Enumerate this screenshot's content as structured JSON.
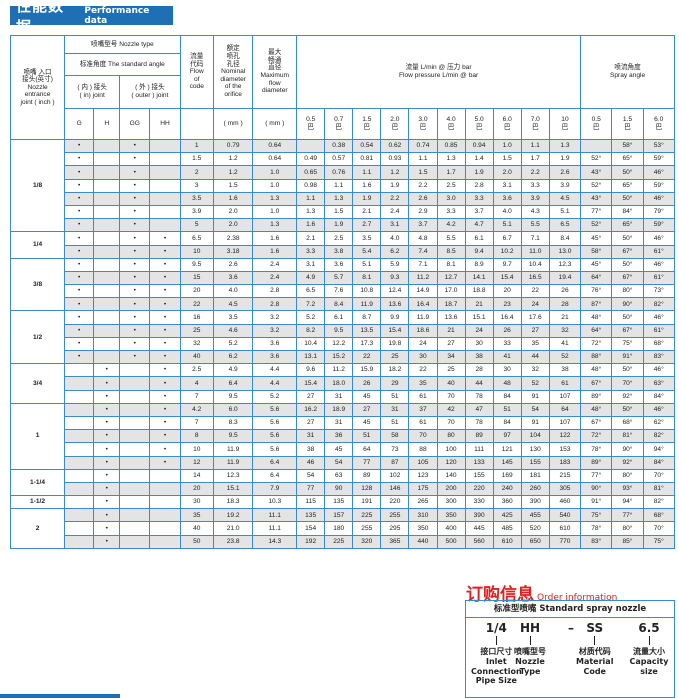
{
  "title": {
    "zh": "性能数据",
    "en": "Performance data"
  },
  "header": {
    "entrance_joint": [
      "喷嘴 入口",
      "接头(英寸)",
      "Nozzle",
      "entrance",
      "joint ( inch )"
    ],
    "nozzle_type": "喷嘴型号  Nozzle type",
    "standard_angle": "标准角度 The standard angle",
    "in_joint": [
      "( 内 ) 接头",
      "( in) joint"
    ],
    "outer_joint": [
      "( 外 ) 接头",
      "( outer ) joint"
    ],
    "joint_cols": [
      "G",
      "H",
      "GG",
      "HH"
    ],
    "flow_code": [
      "流量",
      "代码",
      "Flow",
      "of",
      "code"
    ],
    "nominal": [
      "额定",
      "喷孔",
      "孔径",
      "Nominal",
      "diameter",
      "of the",
      "orifice"
    ],
    "max_flow": [
      "最大",
      "畅通",
      "直径",
      "Maximum",
      "flow",
      "diameter"
    ],
    "mm": "( mm )",
    "flow_pressure": [
      "流量 L/min @ 压力 bar",
      "Flow pressure L/min @ bar"
    ],
    "spray_angle": [
      "喷流角度",
      "Spray angle"
    ],
    "pressures": [
      "0.5",
      "0.7",
      "1.5",
      "2.0",
      "3.0",
      "4.0",
      "5.0",
      "6.0",
      "7.0",
      "10"
    ],
    "angle_pressures": [
      "0.5",
      "1.5",
      "6.0"
    ],
    "bar_unit": "巴"
  },
  "dot_symbol": "•",
  "groups": [
    {
      "size": "1/8",
      "rows": [
        {
          "j": [
            1,
            0,
            1,
            0
          ],
          "code": "1",
          "nom": "0.79",
          "max": "0.64",
          "flow": [
            "",
            "0.38",
            "0.54",
            "0.62",
            "0.74",
            "0.85",
            "0.94",
            "1.0",
            "1.1",
            "1.3"
          ],
          "ang": [
            "",
            "58°",
            "53°"
          ]
        },
        {
          "j": [
            1,
            0,
            1,
            0
          ],
          "code": "1.5",
          "nom": "1.2",
          "max": "0.64",
          "flow": [
            "0.49",
            "0.57",
            "0.81",
            "0.93",
            "1.1",
            "1.3",
            "1.4",
            "1.5",
            "1.7",
            "1.9"
          ],
          "ang": [
            "52°",
            "65°",
            "59°"
          ]
        },
        {
          "j": [
            1,
            0,
            1,
            0
          ],
          "code": "2",
          "nom": "1.2",
          "max": "1.0",
          "flow": [
            "0.65",
            "0.76",
            "1.1",
            "1.2",
            "1.5",
            "1.7",
            "1.9",
            "2.0",
            "2.2",
            "2.6"
          ],
          "ang": [
            "43°",
            "50°",
            "46°"
          ]
        },
        {
          "j": [
            1,
            0,
            1,
            0
          ],
          "code": "3",
          "nom": "1.5",
          "max": "1.0",
          "flow": [
            "0.98",
            "1.1",
            "1.6",
            "1.9",
            "2.2",
            "2.5",
            "2.8",
            "3.1",
            "3.3",
            "3.9"
          ],
          "ang": [
            "52°",
            "65°",
            "59°"
          ]
        },
        {
          "j": [
            1,
            0,
            1,
            0
          ],
          "code": "3.5",
          "nom": "1.6",
          "max": "1.3",
          "flow": [
            "1.1",
            "1.3",
            "1.9",
            "2.2",
            "2.6",
            "3.0",
            "3.3",
            "3.6",
            "3.9",
            "4.5"
          ],
          "ang": [
            "43°",
            "50°",
            "46°"
          ]
        },
        {
          "j": [
            1,
            0,
            1,
            0
          ],
          "code": "3.9",
          "nom": "2.0",
          "max": "1.0",
          "flow": [
            "1.3",
            "1.5",
            "2.1",
            "2.4",
            "2.9",
            "3.3",
            "3.7",
            "4.0",
            "4.3",
            "5.1"
          ],
          "ang": [
            "77°",
            "84°",
            "79°"
          ]
        },
        {
          "j": [
            1,
            0,
            1,
            0
          ],
          "code": "5",
          "nom": "2.0",
          "max": "1.3",
          "flow": [
            "1.6",
            "1.9",
            "2.7",
            "3.1",
            "3.7",
            "4.2",
            "4.7",
            "5.1",
            "5.5",
            "6.5"
          ],
          "ang": [
            "52°",
            "65°",
            "59°"
          ]
        }
      ]
    },
    {
      "size": "1/4",
      "rows": [
        {
          "j": [
            1,
            0,
            1,
            1
          ],
          "code": "6.5",
          "nom": "2.38",
          "max": "1.6",
          "flow": [
            "2.1",
            "2.5",
            "3.5",
            "4.0",
            "4.8",
            "5.5",
            "6.1",
            "6.7",
            "7.1",
            "8.4"
          ],
          "ang": [
            "45°",
            "50°",
            "46°"
          ]
        },
        {
          "j": [
            1,
            0,
            1,
            1
          ],
          "code": "10",
          "nom": "3.18",
          "max": "1.6",
          "flow": [
            "3.3",
            "3.8",
            "5.4",
            "6.2",
            "7.4",
            "8.5",
            "9.4",
            "10.2",
            "11.0",
            "13.0"
          ],
          "ang": [
            "58°",
            "67°",
            "61°"
          ]
        }
      ]
    },
    {
      "size": "3/8",
      "rows": [
        {
          "j": [
            1,
            0,
            1,
            1
          ],
          "code": "9.5",
          "nom": "2.6",
          "max": "2.4",
          "flow": [
            "3.1",
            "3.6",
            "5.1",
            "5.9",
            "7.1",
            "8.1",
            "8.9",
            "9.7",
            "10.4",
            "12.3"
          ],
          "ang": [
            "45°",
            "50°",
            "46°"
          ]
        },
        {
          "j": [
            1,
            0,
            1,
            1
          ],
          "code": "15",
          "nom": "3.6",
          "max": "2.4",
          "flow": [
            "4.9",
            "5.7",
            "8.1",
            "9.3",
            "11.2",
            "12.7",
            "14.1",
            "15.4",
            "16.5",
            "19.4"
          ],
          "ang": [
            "64°",
            "67°",
            "61°"
          ]
        },
        {
          "j": [
            1,
            0,
            1,
            1
          ],
          "code": "20",
          "nom": "4.0",
          "max": "2.8",
          "flow": [
            "6.5",
            "7.6",
            "10.8",
            "12.4",
            "14.9",
            "17.0",
            "18.8",
            "20",
            "22",
            "26"
          ],
          "ang": [
            "76°",
            "80°",
            "73°"
          ]
        },
        {
          "j": [
            1,
            0,
            1,
            1
          ],
          "code": "22",
          "nom": "4.5",
          "max": "2.8",
          "flow": [
            "7.2",
            "8.4",
            "11.9",
            "13.6",
            "16.4",
            "18.7",
            "21",
            "23",
            "24",
            "28"
          ],
          "ang": [
            "87°",
            "90°",
            "82°"
          ]
        }
      ]
    },
    {
      "size": "1/2",
      "rows": [
        {
          "j": [
            1,
            0,
            1,
            1
          ],
          "code": "16",
          "nom": "3.5",
          "max": "3.2",
          "flow": [
            "5.2",
            "6.1",
            "8.7",
            "9.9",
            "11.9",
            "13.6",
            "15.1",
            "16.4",
            "17.6",
            "21"
          ],
          "ang": [
            "48°",
            "50°",
            "46°"
          ]
        },
        {
          "j": [
            1,
            0,
            1,
            1
          ],
          "code": "25",
          "nom": "4.6",
          "max": "3.2",
          "flow": [
            "8.2",
            "9.5",
            "13.5",
            "15.4",
            "18.6",
            "21",
            "24",
            "26",
            "27",
            "32"
          ],
          "ang": [
            "64°",
            "67°",
            "61°"
          ]
        },
        {
          "j": [
            1,
            0,
            1,
            1
          ],
          "code": "32",
          "nom": "5.2",
          "max": "3.6",
          "flow": [
            "10.4",
            "12.2",
            "17.3",
            "19.8",
            "24",
            "27",
            "30",
            "33",
            "35",
            "41"
          ],
          "ang": [
            "72°",
            "75°",
            "68°"
          ]
        },
        {
          "j": [
            1,
            0,
            1,
            1
          ],
          "code": "40",
          "nom": "6.2",
          "max": "3.6",
          "flow": [
            "13.1",
            "15.2",
            "22",
            "25",
            "30",
            "34",
            "38",
            "41",
            "44",
            "52"
          ],
          "ang": [
            "88°",
            "91°",
            "83°"
          ]
        }
      ]
    },
    {
      "size": "3/4",
      "rows": [
        {
          "j": [
            0,
            1,
            0,
            1
          ],
          "code": "2.5",
          "nom": "4.9",
          "max": "4.4",
          "flow": [
            "9.6",
            "11.2",
            "15.9",
            "18.2",
            "22",
            "25",
            "28",
            "30",
            "32",
            "38"
          ],
          "ang": [
            "48°",
            "50°",
            "46°"
          ]
        },
        {
          "j": [
            0,
            1,
            0,
            1
          ],
          "code": "4",
          "nom": "6.4",
          "max": "4.4",
          "flow": [
            "15.4",
            "18.0",
            "26",
            "29",
            "35",
            "40",
            "44",
            "48",
            "52",
            "61"
          ],
          "ang": [
            "67°",
            "70°",
            "63°"
          ]
        },
        {
          "j": [
            0,
            1,
            0,
            1
          ],
          "code": "7",
          "nom": "9.5",
          "max": "5.2",
          "flow": [
            "27",
            "31",
            "45",
            "51",
            "61",
            "70",
            "78",
            "84",
            "91",
            "107"
          ],
          "ang": [
            "89°",
            "92°",
            "84°"
          ]
        }
      ]
    },
    {
      "size": "1",
      "rows": [
        {
          "j": [
            0,
            1,
            0,
            1
          ],
          "code": "4.2",
          "nom": "6.0",
          "max": "5.6",
          "flow": [
            "16.2",
            "18.9",
            "27",
            "31",
            "37",
            "42",
            "47",
            "51",
            "54",
            "64"
          ],
          "ang": [
            "48°",
            "50°",
            "46°"
          ]
        },
        {
          "j": [
            0,
            1,
            0,
            1
          ],
          "code": "7",
          "nom": "8.3",
          "max": "5.6",
          "flow": [
            "27",
            "31",
            "45",
            "51",
            "61",
            "70",
            "78",
            "84",
            "91",
            "107"
          ],
          "ang": [
            "67°",
            "68°",
            "62°"
          ]
        },
        {
          "j": [
            0,
            1,
            0,
            1
          ],
          "code": "8",
          "nom": "9.5",
          "max": "5.6",
          "flow": [
            "31",
            "36",
            "51",
            "58",
            "70",
            "80",
            "89",
            "97",
            "104",
            "122"
          ],
          "ang": [
            "72°",
            "81°",
            "82°"
          ]
        },
        {
          "j": [
            0,
            1,
            0,
            1
          ],
          "code": "10",
          "nom": "11.9",
          "max": "5.6",
          "flow": [
            "38",
            "45",
            "64",
            "73",
            "88",
            "100",
            "111",
            "121",
            "130",
            "153"
          ],
          "ang": [
            "78°",
            "90°",
            "94°"
          ]
        },
        {
          "j": [
            0,
            1,
            0,
            1
          ],
          "code": "12",
          "nom": "11.9",
          "max": "6.4",
          "flow": [
            "46",
            "54",
            "77",
            "87",
            "105",
            "120",
            "133",
            "145",
            "155",
            "183"
          ],
          "ang": [
            "89°",
            "92°",
            "84°"
          ]
        }
      ]
    },
    {
      "size": "1-1/4",
      "rows": [
        {
          "j": [
            0,
            1,
            0,
            0
          ],
          "code": "14",
          "nom": "12.3",
          "max": "6.4",
          "flow": [
            "54",
            "63",
            "89",
            "102",
            "123",
            "140",
            "155",
            "169",
            "181",
            "215"
          ],
          "ang": [
            "77°",
            "80°",
            "70°"
          ]
        },
        {
          "j": [
            0,
            1,
            0,
            0
          ],
          "code": "20",
          "nom": "15.1",
          "max": "7.9",
          "flow": [
            "77",
            "90",
            "128",
            "146",
            "175",
            "200",
            "220",
            "240",
            "260",
            "305"
          ],
          "ang": [
            "90°",
            "93°",
            "81°"
          ]
        }
      ]
    },
    {
      "size": "1-1/2",
      "rows": [
        {
          "j": [
            0,
            1,
            0,
            0
          ],
          "code": "30",
          "nom": "18.3",
          "max": "10.3",
          "flow": [
            "115",
            "135",
            "191",
            "220",
            "265",
            "300",
            "330",
            "360",
            "390",
            "460"
          ],
          "ang": [
            "91°",
            "94°",
            "82°"
          ]
        }
      ]
    },
    {
      "size": "2",
      "rows": [
        {
          "j": [
            0,
            1,
            0,
            0
          ],
          "code": "35",
          "nom": "19.2",
          "max": "11.1",
          "flow": [
            "135",
            "157",
            "225",
            "255",
            "310",
            "350",
            "390",
            "425",
            "455",
            "540"
          ],
          "ang": [
            "75°",
            "77°",
            "68°"
          ]
        },
        {
          "j": [
            0,
            1,
            0,
            0
          ],
          "code": "40",
          "nom": "21.0",
          "max": "11.1",
          "flow": [
            "154",
            "180",
            "255",
            "295",
            "350",
            "400",
            "445",
            "485",
            "520",
            "610"
          ],
          "ang": [
            "78°",
            "80°",
            "70°"
          ]
        },
        {
          "j": [
            0,
            1,
            0,
            0
          ],
          "code": "50",
          "nom": "23.8",
          "max": "14.3",
          "flow": [
            "192",
            "225",
            "320",
            "365",
            "440",
            "500",
            "560",
            "610",
            "650",
            "770"
          ],
          "ang": [
            "83°",
            "85°",
            "75°"
          ]
        }
      ]
    }
  ],
  "order": {
    "title_zh": "订购信息",
    "title_en": "Order information",
    "heading": "标准型喷嘴 Standard spray nozzle",
    "dash": "–",
    "parts": [
      {
        "code": "1/4",
        "zh": "接口尺寸",
        "en": [
          "Inlet",
          "Connection",
          "Pipe Size"
        ]
      },
      {
        "code": "HH",
        "zh": "喷嘴型号",
        "en": [
          "Nozzle",
          "Type"
        ]
      },
      {
        "code": "SS",
        "zh": "材质代码",
        "en": [
          "Material",
          "Code"
        ]
      },
      {
        "code": "6.5",
        "zh": "流量大小",
        "en": [
          "Capacity size"
        ]
      }
    ]
  },
  "colors": {
    "brand_blue": "#1f6fb5",
    "grid_blue": "#3a8ad0",
    "order_red": "#e02020",
    "row_gray": "#e4e4e4"
  }
}
